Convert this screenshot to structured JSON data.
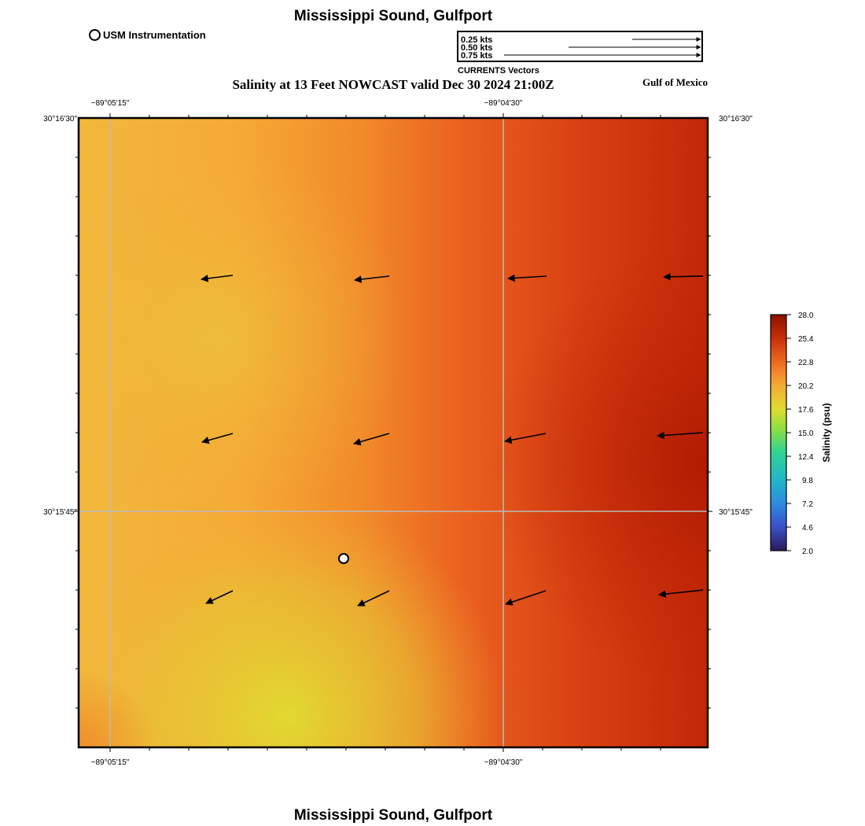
{
  "header": {
    "title": "Mississippi Sound, Gulfport",
    "subtitle": "Salinity at 13 Feet NOWCAST valid Dec 30 2024 21:00Z",
    "region_label": "Gulf of Mexico"
  },
  "footer": {
    "title": "Mississippi Sound, Gulfport"
  },
  "station_legend": {
    "label": "USM Instrumentation"
  },
  "vector_legend": {
    "caption": "CURRENTS Vectors",
    "entries": [
      {
        "label": "0.25 kts",
        "speed_kts": 0.25
      },
      {
        "label": "0.50 kts",
        "speed_kts": 0.5
      },
      {
        "label": "0.75 kts",
        "speed_kts": 0.75
      }
    ]
  },
  "map": {
    "lon_labels": [
      "−89°05'15\"",
      "−89°04'30\""
    ],
    "lat_labels": [
      "30°16'30\"",
      "30°15'45\""
    ],
    "colors": {
      "low_salinity": "#e0dc30",
      "mid_salinity": "#f59a30",
      "high_salinity": "#b81c02",
      "grid": "#bbbbbb",
      "vector": "#000000"
    }
  },
  "colorbar": {
    "title": "Salinity (psu)",
    "ticks": [
      "2.0",
      "4.6",
      "7.2",
      "9.8",
      "12.4",
      "15.0",
      "17.6",
      "20.2",
      "22.8",
      "25.4",
      "28.0"
    ],
    "min": 2.0,
    "max": 28.0
  }
}
